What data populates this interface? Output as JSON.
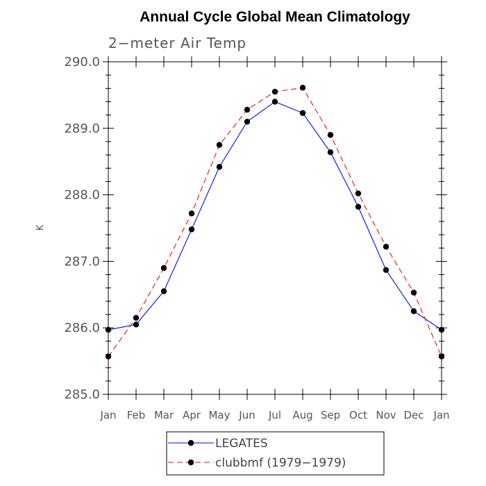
{
  "chart_data": {
    "type": "line",
    "title": "Annual Cycle Global Mean Climatology",
    "subtitle": "2−meter Air Temp",
    "ylabel": "K",
    "xlabel": "",
    "categories": [
      "Jan",
      "Feb",
      "Mar",
      "Apr",
      "May",
      "Jun",
      "Jul",
      "Aug",
      "Sep",
      "Oct",
      "Nov",
      "Dec",
      "Jan"
    ],
    "ylim": [
      285.0,
      290.0
    ],
    "yticks": [
      "285.0",
      "286.0",
      "287.0",
      "288.0",
      "289.0",
      "290.0"
    ],
    "grid": false,
    "legend_position": "bottom-center",
    "series": [
      {
        "name": "LEGATES",
        "color": "#0000ff",
        "dash": "solid",
        "marker": "filled-circle",
        "values": [
          285.97,
          286.05,
          286.55,
          287.48,
          288.42,
          289.1,
          289.4,
          289.23,
          288.64,
          287.82,
          286.87,
          286.25,
          285.97
        ]
      },
      {
        "name": "clubbmf (1979−1979)",
        "color": "#ff0000",
        "dash": "dashed",
        "marker": "filled-circle",
        "values": [
          285.57,
          286.15,
          286.9,
          287.72,
          288.75,
          289.28,
          289.55,
          289.61,
          288.9,
          288.02,
          287.22,
          286.53,
          285.57
        ]
      }
    ]
  }
}
